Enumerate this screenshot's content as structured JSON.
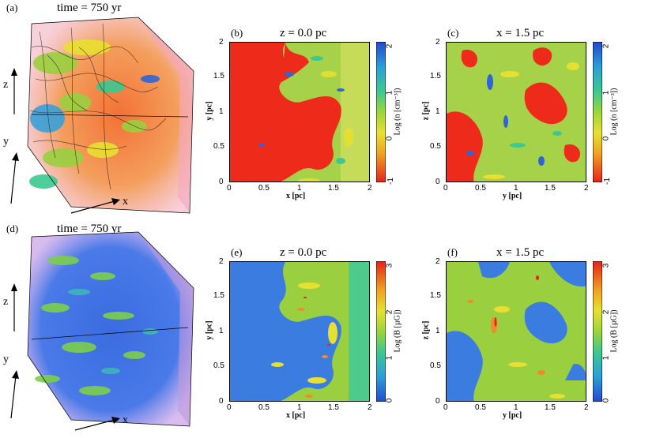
{
  "panels": {
    "a": {
      "label": "(a)",
      "title": "time = 750 yr",
      "axes": {
        "x": "x",
        "y": "y",
        "z": "z"
      }
    },
    "b": {
      "label": "(b)",
      "title": "z = 0.0 pc",
      "xlabel": "x [pc]",
      "ylabel": "y [pc]",
      "cbar_label": "Log (n [cm⁻³])",
      "cbar_ticks": [
        "2",
        "1",
        "0",
        "-1"
      ],
      "xticks": [
        "0",
        "0.5",
        "1",
        "1.5",
        "2"
      ],
      "yticks": [
        "2",
        "1.5",
        "1",
        "0.5",
        "0"
      ]
    },
    "c": {
      "label": "(c)",
      "title": "x = 1.5 pc",
      "xlabel": "y [pc]",
      "ylabel": "z [pc]",
      "cbar_label": "Log (n [cm⁻³])",
      "cbar_ticks": [
        "2",
        "1",
        "0",
        "-1"
      ],
      "xticks": [
        "0",
        "0.5",
        "1",
        "1.5",
        "2"
      ],
      "yticks": [
        "2",
        "1.5",
        "1",
        "0.5",
        "0"
      ]
    },
    "d": {
      "label": "(d)",
      "title": "time = 750 yr",
      "axes": {
        "x": "x",
        "y": "y",
        "z": "z"
      }
    },
    "e": {
      "label": "(e)",
      "title": "z = 0.0 pc",
      "xlabel": "x [pc]",
      "ylabel": "y [pc]",
      "cbar_label": "Log (B [µG])",
      "cbar_ticks": [
        "3",
        "2",
        "1",
        "0"
      ],
      "xticks": [
        "0",
        "0.5",
        "1",
        "1.5",
        "2"
      ],
      "yticks": [
        "2",
        "1.5",
        "1",
        "0.5",
        "0"
      ]
    },
    "f": {
      "label": "(f)",
      "title": "x = 1.5 pc",
      "xlabel": "y [pc]",
      "ylabel": "z [pc]",
      "cbar_label": "Log (B [µG])",
      "cbar_ticks": [
        "3",
        "2",
        "1",
        "0"
      ],
      "xticks": [
        "0",
        "0.5",
        "1",
        "1.5",
        "2"
      ],
      "yticks": [
        "2",
        "1.5",
        "1",
        "0.5",
        "0"
      ]
    }
  },
  "colors": {
    "dense_red": "#ee2a1a",
    "green": "#8ecf3a",
    "yellow": "#e8e23a",
    "blue": "#2e64d8",
    "orange": "#ef8a2a",
    "cbar_top": "#2a5bd6",
    "cbar_bottom": "#e8281a"
  }
}
